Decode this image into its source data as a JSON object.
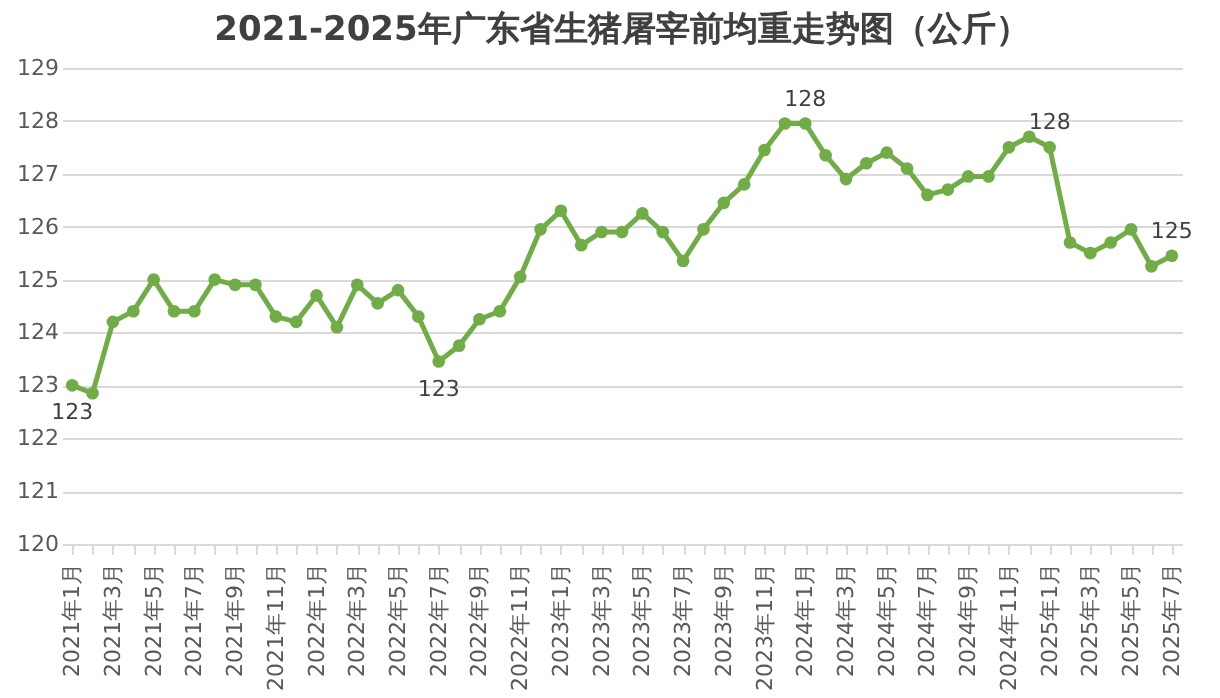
{
  "chart_data": {
    "type": "line",
    "title": "2021-2025年广东省生猪屠宰前均重走势图（公斤）",
    "categories": [
      "2021年1月",
      null,
      "2021年3月",
      null,
      "2021年5月",
      null,
      "2021年7月",
      null,
      "2021年9月",
      null,
      "2021年11月",
      null,
      "2022年1月",
      null,
      "2022年3月",
      null,
      "2022年5月",
      null,
      "2022年7月",
      null,
      "2022年9月",
      null,
      "2022年11月",
      null,
      "2023年1月",
      null,
      "2023年3月",
      null,
      "2023年5月",
      null,
      "2023年7月",
      null,
      "2023年9月",
      null,
      "2023年11月",
      null,
      "2024年1月",
      null,
      "2024年3月",
      null,
      "2024年5月",
      null,
      "2024年7月",
      null,
      "2024年9月",
      null,
      "2024年11月",
      null,
      "2025年1月",
      null,
      "2025年3月",
      null,
      "2025年5月",
      null,
      "2025年7月"
    ],
    "series": [
      {
        "color": "#70ad47",
        "values": [
          123.0,
          122.85,
          124.2,
          124.4,
          125.0,
          124.4,
          124.4,
          125.0,
          124.9,
          124.9,
          124.3,
          124.2,
          124.7,
          124.1,
          124.9,
          124.55,
          124.8,
          124.3,
          123.45,
          123.75,
          124.25,
          124.4,
          125.05,
          125.95,
          126.3,
          125.65,
          125.9,
          125.9,
          126.25,
          125.9,
          125.35,
          125.95,
          126.45,
          126.8,
          127.45,
          127.95,
          127.95,
          127.35,
          126.9,
          127.2,
          127.4,
          127.1,
          126.6,
          126.7,
          126.95,
          126.95,
          127.5,
          127.7,
          127.5,
          125.7,
          125.5,
          125.7,
          125.95,
          125.25,
          125.45
        ],
        "value_labels": [
          "123",
          null,
          null,
          null,
          null,
          null,
          null,
          null,
          null,
          null,
          null,
          null,
          null,
          null,
          null,
          null,
          null,
          null,
          "123",
          null,
          null,
          null,
          null,
          null,
          null,
          null,
          null,
          null,
          null,
          null,
          null,
          null,
          null,
          null,
          null,
          null,
          "128",
          null,
          null,
          null,
          null,
          null,
          null,
          null,
          null,
          null,
          null,
          null,
          "128",
          null,
          null,
          null,
          null,
          null,
          "125"
        ]
      }
    ],
    "ylim": [
      120,
      129
    ],
    "yticks": [
      120,
      121,
      122,
      123,
      124,
      125,
      126,
      127,
      128,
      129
    ],
    "grid": "y",
    "marker": "circle",
    "line_style": "solid"
  }
}
